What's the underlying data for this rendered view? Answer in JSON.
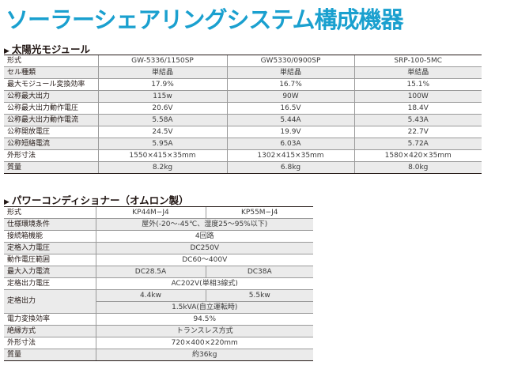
{
  "title": "ソーラーシェアリングシステム構成機器",
  "modules": {
    "heading": "太陽光モジュール",
    "rows": [
      {
        "label": "形式",
        "values": [
          "GW-5336/1150SP",
          "GW5330/0900SP",
          "SRP-100-5MC"
        ]
      },
      {
        "label": "セル種類",
        "values": [
          "単結晶",
          "単結晶",
          "単結晶"
        ]
      },
      {
        "label": "最大モジュール変換効率",
        "values": [
          "17.9%",
          "16.7%",
          "15.1%"
        ]
      },
      {
        "label": "公称最大出力",
        "values": [
          "115w",
          "90W",
          "100W"
        ]
      },
      {
        "label": "公称最大出力動作電圧",
        "values": [
          "20.6V",
          "16.5V",
          "18.4V"
        ]
      },
      {
        "label": "公称最大出力動作電流",
        "values": [
          "5.58A",
          "5.44A",
          "5.43A"
        ]
      },
      {
        "label": "公称開放電圧",
        "values": [
          "24.5V",
          "19.9V",
          "22.7V"
        ]
      },
      {
        "label": "公称短絡電流",
        "values": [
          "5.95A",
          "6.03A",
          "5.72A"
        ]
      },
      {
        "label": "外形寸法",
        "values": [
          "1550×415×35mm",
          "1302×415×35mm",
          "1580×420×35mm"
        ]
      },
      {
        "label": "質量",
        "values": [
          "8.2kg",
          "6.8kg",
          "8.0kg"
        ]
      }
    ]
  },
  "inverter": {
    "heading": "パワーコンディショナー（オムロン製）",
    "model_label": "形式",
    "models": [
      "KP44M−J4",
      "KP55M−J4"
    ],
    "env_label": "仕様環境条件",
    "env_value": "屋外(-20〜-45℃、湿度25〜95%以下)",
    "junction_label": "接続箱機能",
    "junction_value": "4回路",
    "rated_input_label": "定格入力電圧",
    "rated_input_value": "DC250V",
    "op_range_label": "動作電圧範囲",
    "op_range_value": "DC60〜400V",
    "max_input_label": "最大入力電流",
    "max_input_values": [
      "DC28.5A",
      "DC38A"
    ],
    "rated_output_v_label": "定格出力電圧",
    "rated_output_v_value": "AC202V(単相3線式)",
    "rated_output_label": "定格出力",
    "rated_output_values": [
      "4.4kw",
      "5.5kw"
    ],
    "rated_output_standalone": "1.5kVA(自立運転時)",
    "efficiency_label": "電力変換効率",
    "efficiency_value": "94.5%",
    "insulation_label": "絶縁方式",
    "insulation_value": "トランスレス方式",
    "dims_label": "外形寸法",
    "dims_value": "720×400×220mm",
    "mass_label": "質量",
    "mass_value": "約36kg"
  },
  "colors": {
    "title": "#1aa0cf",
    "row_shade": "#ebebeb",
    "rule": "#231815"
  }
}
